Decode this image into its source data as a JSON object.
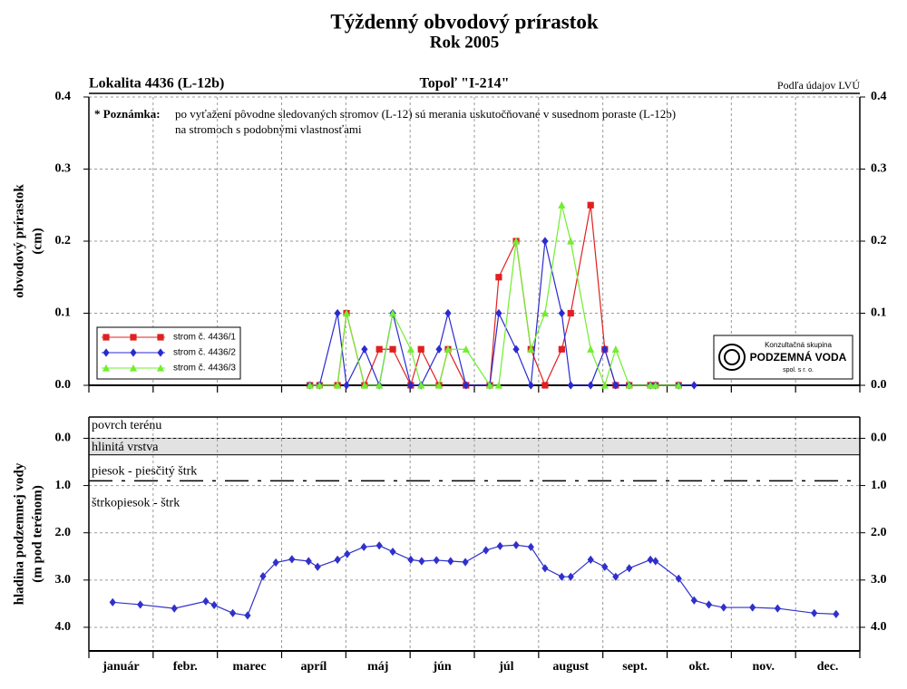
{
  "title": "Týždenný obvodový prírastok",
  "subtitle": "Rok 2005",
  "header": {
    "left": "Lokalita 4436 (L-12b)",
    "center": "Topoľ \"I-214\"",
    "right": "Podľa údajov LVÚ"
  },
  "note": {
    "label": "* Poznámka:",
    "lines": [
      "po vyťažení pôvodne sledovaných stromov (L-12) sú merania uskutočňované v susednom poraste (L-12b)",
      "na stromoch s podobnými vlastnosťami"
    ]
  },
  "logo": {
    "top": "Konzultačná skupina",
    "name": "PODZEMNÁ VODA",
    "bottom": "spol. s r. o."
  },
  "chart_data": [
    {
      "type": "line",
      "ylabel": [
        "obvodový prírastok",
        "(cm)"
      ],
      "x": [
        3.44,
        3.59,
        3.87,
        4.01,
        4.29,
        4.52,
        4.73,
        5.01,
        5.17,
        5.45,
        5.59,
        5.87,
        6.24,
        6.38,
        6.65,
        6.88,
        7.1,
        7.36,
        7.5,
        7.81,
        8.03,
        8.2,
        8.41,
        8.74,
        8.82,
        9.18,
        9.42
      ],
      "series": [
        {
          "name": "strom č. 4436/1",
          "color": "#e02020",
          "marker": "square",
          "values": [
            0,
            0,
            0,
            0.1,
            0,
            0.05,
            0.05,
            0,
            0.05,
            0,
            0.05,
            0,
            0,
            0.15,
            0.2,
            0.05,
            0,
            0.05,
            0.1,
            0.25,
            0.05,
            0,
            0,
            0,
            0,
            0,
            null
          ]
        },
        {
          "name": "strom č. 4436/2",
          "color": "#2a2ad0",
          "marker": "diamond",
          "values": [
            0,
            0,
            0.1,
            0,
            0.05,
            0,
            0.1,
            0,
            0,
            0.05,
            0.1,
            0,
            0,
            0.1,
            0.05,
            0,
            0.2,
            0.1,
            0,
            0,
            0.05,
            0,
            0,
            0,
            0,
            0,
            0
          ]
        },
        {
          "name": "strom č. 4436/3",
          "color": "#70ee30",
          "marker": "triangle",
          "values": [
            0,
            0,
            0,
            0.1,
            0,
            0,
            0.1,
            0.05,
            0,
            0,
            0.05,
            0.05,
            0,
            0,
            0.2,
            0.05,
            0.1,
            0.25,
            0.2,
            0.05,
            0,
            0.05,
            0,
            0,
            0,
            0,
            null
          ]
        }
      ],
      "xlim": [
        0,
        12
      ],
      "xticks": [
        0,
        1,
        2,
        3,
        4,
        5,
        6,
        7,
        8,
        9,
        10,
        11,
        12
      ],
      "ylim": [
        0,
        0.4
      ],
      "yticks": [
        {
          "value": 0,
          "label": "0.0"
        },
        0.1,
        0.2,
        0.3,
        0.4
      ],
      "grid": true,
      "legend": "lower left"
    },
    {
      "type": "line",
      "ylabel": [
        "hladina podzemnej vody",
        "(m pod terénom)"
      ],
      "categories": [
        "január",
        "febr.",
        "marec",
        "apríl",
        "máj",
        "jún",
        "júl",
        "august",
        "sept.",
        "okt.",
        "nov.",
        "dec."
      ],
      "x": [
        0.37,
        0.8,
        1.33,
        1.82,
        1.95,
        2.24,
        2.47,
        2.71,
        2.91,
        3.16,
        3.42,
        3.56,
        3.87,
        4.02,
        4.28,
        4.52,
        4.73,
        5.01,
        5.18,
        5.41,
        5.63,
        5.86,
        6.18,
        6.4,
        6.65,
        6.88,
        7.1,
        7.36,
        7.5,
        7.81,
        8.03,
        8.2,
        8.41,
        8.74,
        8.82,
        9.18,
        9.42,
        9.65,
        9.88,
        10.33,
        10.72,
        11.29,
        11.63
      ],
      "series": [
        {
          "color": "#3030cc",
          "marker": "diamond",
          "values": [
            3.47,
            3.52,
            3.6,
            3.45,
            3.53,
            3.7,
            3.75,
            2.92,
            2.63,
            2.56,
            2.6,
            2.72,
            2.57,
            2.45,
            2.3,
            2.27,
            2.4,
            2.57,
            2.6,
            2.58,
            2.6,
            2.62,
            2.37,
            2.28,
            2.26,
            2.3,
            2.75,
            2.93,
            2.93,
            2.57,
            2.72,
            2.93,
            2.75,
            2.57,
            2.6,
            2.97,
            3.43,
            3.52,
            3.58,
            3.58,
            3.6,
            3.7,
            3.72
          ]
        }
      ],
      "xlim": [
        0,
        12
      ],
      "xticks": [
        0,
        1,
        2,
        3,
        4,
        5,
        6,
        7,
        8,
        9,
        10,
        11,
        12
      ],
      "ylim": [
        -0.45,
        4.5
      ],
      "y_inverted": true,
      "yticks": [
        {
          "value": 0,
          "label": "0.0"
        },
        {
          "value": 1,
          "label": "1.0"
        },
        {
          "value": 2,
          "label": "2.0"
        },
        {
          "value": 3,
          "label": "3.0"
        },
        {
          "value": 4,
          "label": "4.0"
        }
      ],
      "grid": true,
      "surface_label": "povrch terénu",
      "layers": [
        {
          "name": "hlinitá vrstva",
          "top": 0,
          "bottom": 0.35
        },
        {
          "name": "piesok - piesčitý štrk",
          "boundary": 0.9
        },
        {
          "name": "štrkopiesok - štrk"
        }
      ]
    }
  ]
}
